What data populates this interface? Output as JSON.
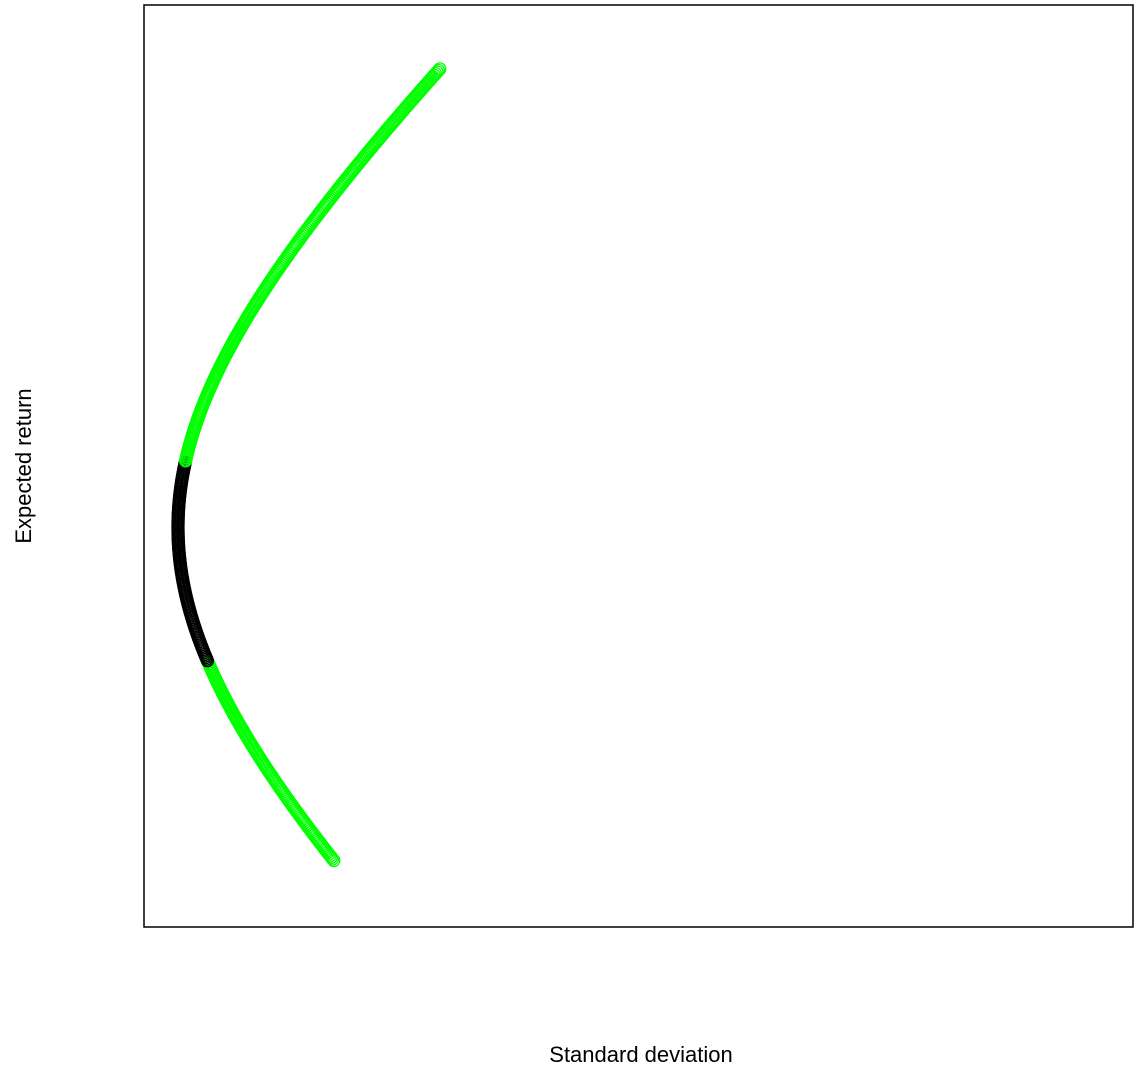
{
  "chart_data": {
    "type": "scatter",
    "title": "",
    "xlabel": "Standard deviation",
    "ylabel": "Expected return",
    "grid": false,
    "legend": "none",
    "axis_ticks": "none",
    "xlim": [
      0,
      1
    ],
    "ylim": [
      0,
      1
    ],
    "frontier": {
      "vertex": [
        0.0,
        0.428
      ],
      "a": 1.0,
      "b": 0.365,
      "y_start": 0.038,
      "y_end": 0.965,
      "n_points": 500,
      "highlight_y_range": [
        0.271,
        0.506
      ]
    },
    "series": [
      {
        "role": "outside highlighted range",
        "color": "#00ff00"
      },
      {
        "role": "highlighted range",
        "color": "#000000"
      }
    ]
  }
}
